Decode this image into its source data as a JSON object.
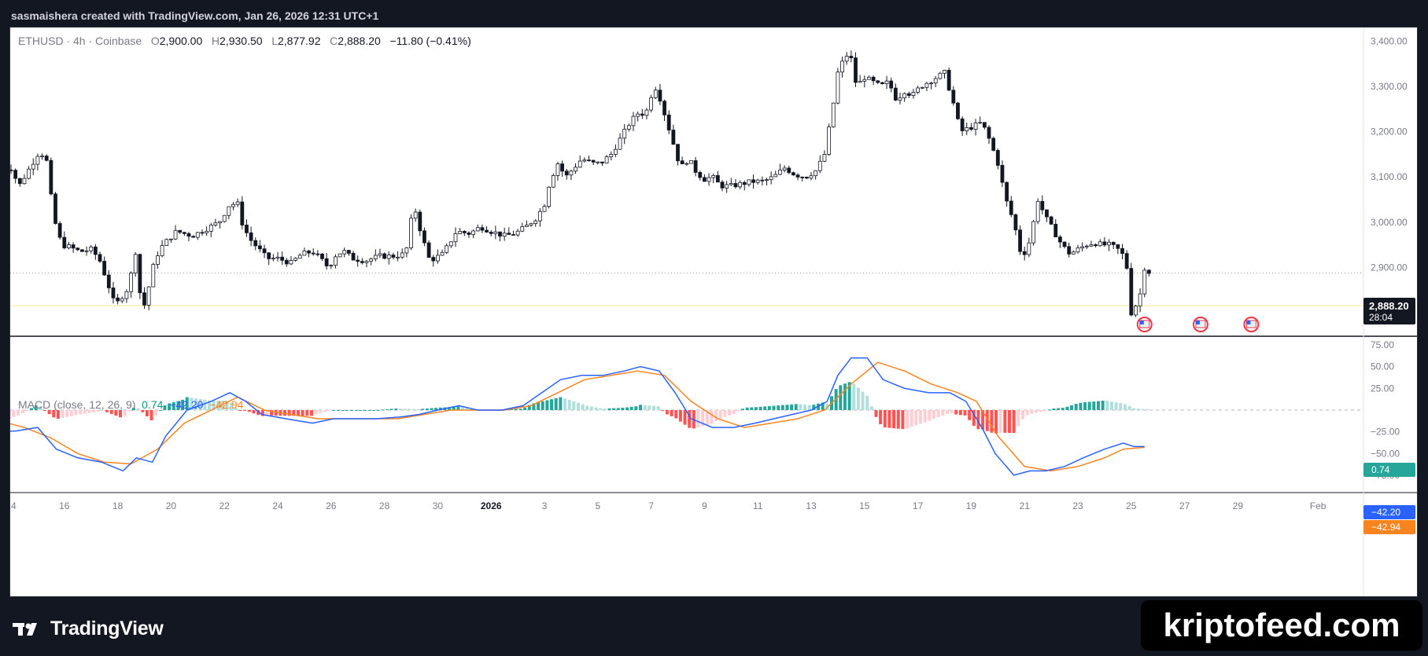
{
  "header": {
    "attribution": "sasmaishera created with TradingView.com, Jan 26, 2026 12:31 UTC+1"
  },
  "legend": {
    "symbol": "ETHUSD · 4h · Coinbase",
    "o_label": "O",
    "o_value": "2,900.00",
    "h_label": "H",
    "h_value": "2,930.50",
    "l_label": "L",
    "l_value": "2,877.92",
    "c_label": "C",
    "c_value": "2,888.20",
    "change": "−11.80 (−0.41%)"
  },
  "macd_legend": {
    "title": "MACD (close, 12, 26, 9)",
    "histogram": "0.74",
    "macd": "−42.20",
    "signal": "−42.94"
  },
  "price_axis": {
    "ticks": [
      "3,400.00",
      "3,300.00",
      "3,200.00",
      "3,100.00",
      "3,000.00",
      "2,900.00",
      "2,800.00"
    ]
  },
  "macd_axis": {
    "ticks": [
      "75.00",
      "50.00",
      "25.00",
      "−25.00",
      "−50.00",
      "−75.00"
    ]
  },
  "time_axis": {
    "ticks": [
      "14",
      "16",
      "18",
      "20",
      "22",
      "24",
      "26",
      "28",
      "30",
      "2026",
      "3",
      "5",
      "7",
      "9",
      "11",
      "13",
      "15",
      "17",
      "19",
      "21",
      "23",
      "25",
      "27",
      "29",
      "Feb"
    ]
  },
  "last_price": {
    "price": "2,888.20",
    "countdown": "28:04"
  },
  "macd_tags": {
    "histogram": "0.74",
    "macd": "−42.20",
    "signal": "−42.94"
  },
  "colors": {
    "up": "#ffffff",
    "down": "#131722",
    "macd_line": "#2962ff",
    "signal_line": "#f7841e",
    "hist_up_strong": "#26a69a",
    "hist_up_weak": "#b2dfdb",
    "hist_down_strong": "#ff5252",
    "hist_down_weak": "#ffcdd2"
  },
  "footer": {
    "logo_text": "TradingView",
    "watermark": "kriptofeed.com"
  },
  "chart_data": [
    {
      "type": "candlestick",
      "symbol": "ETHUSD",
      "interval": "4h",
      "ylim": [
        2750,
        3430
      ],
      "x_ticks": [
        "14",
        "16",
        "18",
        "20",
        "22",
        "24",
        "26",
        "28",
        "30",
        "2026",
        "3",
        "5",
        "7",
        "9",
        "11",
        "13",
        "15",
        "17",
        "19",
        "21",
        "23",
        "25",
        "27",
        "29",
        "Feb"
      ],
      "x_range": [
        "Dec 13 2025",
        "Feb 1 2026"
      ],
      "close_path": [
        [
          13.5,
          3115
        ],
        [
          14.0,
          3120
        ],
        [
          14.3,
          3080
        ],
        [
          14.6,
          3110
        ],
        [
          15.0,
          3150
        ],
        [
          15.3,
          3150
        ],
        [
          15.6,
          3010
        ],
        [
          15.9,
          2950
        ],
        [
          16.2,
          2945
        ],
        [
          16.6,
          2935
        ],
        [
          17.0,
          2940
        ],
        [
          17.3,
          2920
        ],
        [
          17.6,
          2870
        ],
        [
          17.9,
          2815
        ],
        [
          18.2,
          2840
        ],
        [
          18.4,
          2855
        ],
        [
          18.7,
          2945
        ],
        [
          18.9,
          2795
        ],
        [
          19.1,
          2840
        ],
        [
          19.4,
          2920
        ],
        [
          19.7,
          2950
        ],
        [
          20.2,
          2980
        ],
        [
          20.8,
          2970
        ],
        [
          21.3,
          2985
        ],
        [
          21.8,
          3000
        ],
        [
          22.2,
          3040
        ],
        [
          22.5,
          3040
        ],
        [
          22.7,
          2990
        ],
        [
          23.0,
          2960
        ],
        [
          23.3,
          2940
        ],
        [
          23.6,
          2920
        ],
        [
          24.0,
          2920
        ],
        [
          24.5,
          2910
        ],
        [
          24.9,
          2930
        ],
        [
          25.3,
          2935
        ],
        [
          25.6,
          2920
        ],
        [
          25.9,
          2900
        ],
        [
          26.2,
          2930
        ],
        [
          26.5,
          2935
        ],
        [
          26.8,
          2920
        ],
        [
          27.3,
          2915
        ],
        [
          27.8,
          2925
        ],
        [
          28.3,
          2925
        ],
        [
          28.8,
          2930
        ],
        [
          29.1,
          3040
        ],
        [
          29.4,
          2970
        ],
        [
          29.7,
          2915
        ],
        [
          30.2,
          2930
        ],
        [
          30.7,
          2980
        ],
        [
          31.2,
          2975
        ],
        [
          31.6,
          2990
        ],
        [
          32.0,
          2980
        ],
        [
          32.5,
          2970
        ],
        [
          32.9,
          2975
        ],
        [
          33.3,
          2990
        ],
        [
          33.7,
          3010
        ],
        [
          34.0,
          3040
        ],
        [
          34.2,
          3090
        ],
        [
          34.5,
          3130
        ],
        [
          34.8,
          3100
        ],
        [
          35.1,
          3120
        ],
        [
          35.4,
          3140
        ],
        [
          35.8,
          3130
        ],
        [
          36.1,
          3130
        ],
        [
          36.5,
          3150
        ],
        [
          36.8,
          3180
        ],
        [
          37.2,
          3220
        ],
        [
          37.5,
          3240
        ],
        [
          37.8,
          3240
        ],
        [
          38.0,
          3280
        ],
        [
          38.2,
          3300
        ],
        [
          38.5,
          3240
        ],
        [
          38.8,
          3180
        ],
        [
          39.1,
          3120
        ],
        [
          39.4,
          3140
        ],
        [
          39.7,
          3110
        ],
        [
          40.0,
          3095
        ],
        [
          40.3,
          3100
        ],
        [
          40.6,
          3080
        ],
        [
          41.0,
          3080
        ],
        [
          41.4,
          3085
        ],
        [
          41.8,
          3090
        ],
        [
          42.2,
          3090
        ],
        [
          42.6,
          3100
        ],
        [
          43.0,
          3120
        ],
        [
          43.4,
          3105
        ],
        [
          43.8,
          3100
        ],
        [
          44.2,
          3115
        ],
        [
          44.5,
          3150
        ],
        [
          44.8,
          3250
        ],
        [
          45.0,
          3330
        ],
        [
          45.3,
          3370
        ],
        [
          45.5,
          3360
        ],
        [
          45.7,
          3300
        ],
        [
          46.0,
          3320
        ],
        [
          46.3,
          3310
        ],
        [
          46.6,
          3300
        ],
        [
          46.9,
          3310
        ],
        [
          47.2,
          3270
        ],
        [
          47.5,
          3290
        ],
        [
          47.8,
          3280
        ],
        [
          48.1,
          3300
        ],
        [
          48.4,
          3310
        ],
        [
          48.7,
          3320
        ],
        [
          49.0,
          3330
        ],
        [
          49.3,
          3270
        ],
        [
          49.6,
          3200
        ],
        [
          50.0,
          3210
        ],
        [
          50.4,
          3220
        ],
        [
          50.7,
          3180
        ],
        [
          51.0,
          3130
        ],
        [
          51.3,
          3050
        ],
        [
          51.6,
          3000
        ],
        [
          51.9,
          2920
        ],
        [
          52.2,
          2960
        ],
        [
          52.5,
          3050
        ],
        [
          52.8,
          3010
        ],
        [
          53.1,
          2980
        ],
        [
          53.4,
          2950
        ],
        [
          53.7,
          2930
        ],
        [
          54.0,
          2940
        ],
        [
          54.3,
          2950
        ],
        [
          54.6,
          2955
        ],
        [
          54.9,
          2950
        ],
        [
          55.2,
          2950
        ],
        [
          55.5,
          2940
        ],
        [
          55.8,
          2920
        ],
        [
          56.0,
          2800
        ],
        [
          56.3,
          2830
        ],
        [
          56.5,
          2900
        ],
        [
          56.7,
          2888
        ]
      ]
    },
    {
      "type": "macd",
      "params": "close, 12, 26, 9",
      "ylim": [
        -95,
        85
      ],
      "macd_line": [
        [
          13.5,
          -25
        ],
        [
          14.2,
          -24
        ],
        [
          15.0,
          -20
        ],
        [
          15.7,
          -45
        ],
        [
          16.5,
          -55
        ],
        [
          17.4,
          -60
        ],
        [
          18.2,
          -70
        ],
        [
          18.7,
          -55
        ],
        [
          19.3,
          -60
        ],
        [
          19.8,
          -30
        ],
        [
          20.6,
          0
        ],
        [
          21.5,
          10
        ],
        [
          22.2,
          20
        ],
        [
          22.8,
          10
        ],
        [
          23.4,
          -5
        ],
        [
          24.3,
          -10
        ],
        [
          25.3,
          -15
        ],
        [
          26.1,
          -10
        ],
        [
          26.9,
          -10
        ],
        [
          27.7,
          -10
        ],
        [
          28.6,
          -8
        ],
        [
          29.3,
          -5
        ],
        [
          30.0,
          0
        ],
        [
          30.8,
          5
        ],
        [
          31.5,
          0
        ],
        [
          32.4,
          0
        ],
        [
          33.2,
          5
        ],
        [
          33.9,
          20
        ],
        [
          34.6,
          35
        ],
        [
          35.4,
          40
        ],
        [
          36.2,
          40
        ],
        [
          37.0,
          45
        ],
        [
          37.6,
          50
        ],
        [
          38.3,
          45
        ],
        [
          38.9,
          20
        ],
        [
          39.5,
          -10
        ],
        [
          40.3,
          -20
        ],
        [
          41.1,
          -20
        ],
        [
          41.9,
          -15
        ],
        [
          42.6,
          -10
        ],
        [
          43.3,
          -5
        ],
        [
          44.0,
          0
        ],
        [
          44.6,
          10
        ],
        [
          45.0,
          40
        ],
        [
          45.5,
          60
        ],
        [
          46.1,
          60
        ],
        [
          46.7,
          35
        ],
        [
          47.5,
          25
        ],
        [
          48.4,
          20
        ],
        [
          49.2,
          20
        ],
        [
          49.8,
          10
        ],
        [
          50.4,
          -20
        ],
        [
          50.9,
          -50
        ],
        [
          51.6,
          -75
        ],
        [
          52.2,
          -70
        ],
        [
          52.8,
          -70
        ],
        [
          53.5,
          -65
        ],
        [
          54.2,
          -55
        ],
        [
          55.0,
          -45
        ],
        [
          55.7,
          -38
        ],
        [
          56.1,
          -42
        ],
        [
          56.5,
          -42
        ]
      ],
      "signal_line": [
        [
          13.5,
          -12
        ],
        [
          14.5,
          -20
        ],
        [
          15.5,
          -32
        ],
        [
          16.5,
          -50
        ],
        [
          17.5,
          -60
        ],
        [
          18.5,
          -62
        ],
        [
          19.5,
          -45
        ],
        [
          20.5,
          -15
        ],
        [
          21.5,
          0
        ],
        [
          22.5,
          15
        ],
        [
          23.5,
          0
        ],
        [
          24.5,
          -5
        ],
        [
          25.5,
          -10
        ],
        [
          26.5,
          -10
        ],
        [
          27.5,
          -10
        ],
        [
          28.5,
          -10
        ],
        [
          29.5,
          -5
        ],
        [
          30.5,
          0
        ],
        [
          31.5,
          0
        ],
        [
          32.5,
          0
        ],
        [
          33.5,
          5
        ],
        [
          34.5,
          20
        ],
        [
          35.5,
          35
        ],
        [
          36.5,
          40
        ],
        [
          37.5,
          45
        ],
        [
          38.5,
          40
        ],
        [
          39.5,
          10
        ],
        [
          40.5,
          -10
        ],
        [
          41.5,
          -20
        ],
        [
          42.5,
          -15
        ],
        [
          43.5,
          -10
        ],
        [
          44.5,
          0
        ],
        [
          45.5,
          30
        ],
        [
          46.5,
          55
        ],
        [
          47.5,
          45
        ],
        [
          48.5,
          30
        ],
        [
          49.5,
          20
        ],
        [
          50.2,
          10
        ],
        [
          51.0,
          -30
        ],
        [
          52.0,
          -65
        ],
        [
          53.0,
          -70
        ],
        [
          54.0,
          -65
        ],
        [
          55.0,
          -55
        ],
        [
          55.7,
          -45
        ],
        [
          56.5,
          -42.94
        ]
      ],
      "histogram": {
        "last": 0.74
      }
    }
  ]
}
